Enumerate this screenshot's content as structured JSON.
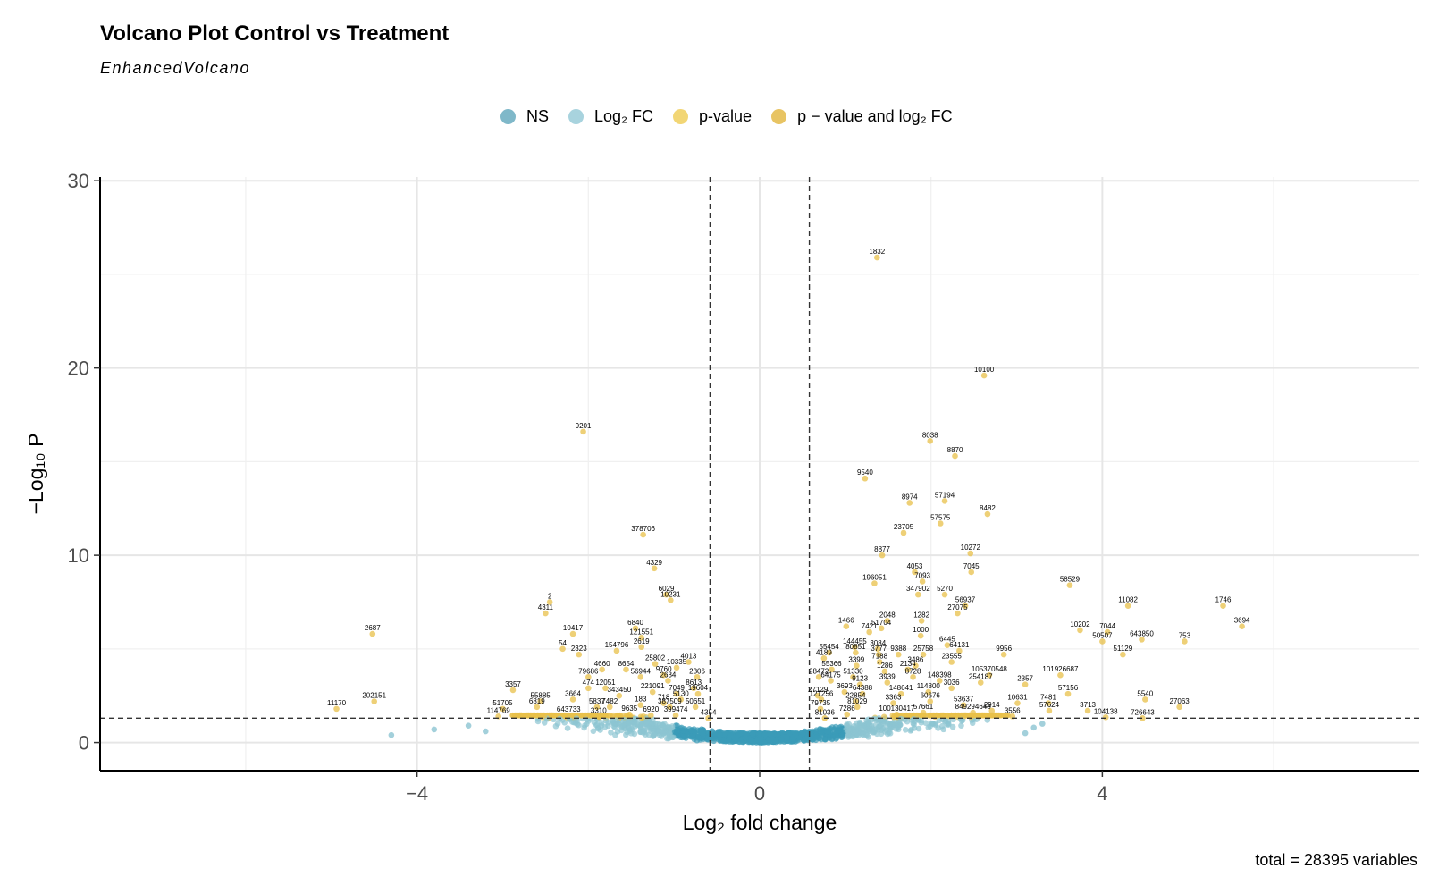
{
  "chart_data": {
    "type": "scatter",
    "title": "Volcano Plot Control vs Treatment",
    "subtitle": "EnhancedVolcano",
    "xlabel": "Log₂ fold change",
    "ylabel": "−Log₁₀ P",
    "xlim": [
      -7.7,
      7.7
    ],
    "ylim": [
      -1.5,
      30.2
    ],
    "xticks": [
      -4,
      0,
      4
    ],
    "yticks": [
      0,
      10,
      20,
      30
    ],
    "grid": true,
    "legend_position": "top",
    "fc_cutoff": 0.58,
    "p_cutoff_log10": 1.3,
    "caption": "total = 28395 variables",
    "legend": [
      {
        "name": "NS",
        "color": "#7fb8c9"
      },
      {
        "name": "Log₂ FC",
        "color": "#a8d3de"
      },
      {
        "name": "p-value",
        "color": "#f2d675"
      },
      {
        "name": "p − value and log₂ FC",
        "color": "#e8c463"
      }
    ],
    "colors": {
      "ns": "#3a9bb8",
      "ns_light": "#8cc4d2",
      "sig": "#e8c04a"
    },
    "labeled_points": [
      {
        "label": "1832",
        "x": 1.37,
        "y": 25.9
      },
      {
        "label": "10100",
        "x": 2.62,
        "y": 19.6
      },
      {
        "label": "9201",
        "x": -2.06,
        "y": 16.6
      },
      {
        "label": "8038",
        "x": 1.99,
        "y": 16.1
      },
      {
        "label": "8870",
        "x": 2.28,
        "y": 15.3
      },
      {
        "label": "9540",
        "x": 1.23,
        "y": 14.1
      },
      {
        "label": "8974",
        "x": 1.75,
        "y": 12.8
      },
      {
        "label": "57194",
        "x": 2.16,
        "y": 12.9
      },
      {
        "label": "8482",
        "x": 2.66,
        "y": 12.2
      },
      {
        "label": "57575",
        "x": 2.11,
        "y": 11.7
      },
      {
        "label": "23705",
        "x": 1.68,
        "y": 11.2
      },
      {
        "label": "378706",
        "x": -1.36,
        "y": 11.1
      },
      {
        "label": "10272",
        "x": 2.46,
        "y": 10.1
      },
      {
        "label": "8877",
        "x": 1.43,
        "y": 10.0
      },
      {
        "label": "4329",
        "x": -1.23,
        "y": 9.3
      },
      {
        "label": "4053",
        "x": 1.81,
        "y": 9.1
      },
      {
        "label": "7045",
        "x": 2.47,
        "y": 9.1
      },
      {
        "label": "196051",
        "x": 1.34,
        "y": 8.5
      },
      {
        "label": "7093",
        "x": 1.9,
        "y": 8.6
      },
      {
        "label": "58529",
        "x": 3.62,
        "y": 8.4
      },
      {
        "label": "6029",
        "x": -1.09,
        "y": 7.9
      },
      {
        "label": "347902",
        "x": 1.85,
        "y": 7.9
      },
      {
        "label": "5270",
        "x": 2.16,
        "y": 7.9
      },
      {
        "label": "10231",
        "x": -1.04,
        "y": 7.6
      },
      {
        "label": "2",
        "x": -2.45,
        "y": 7.5
      },
      {
        "label": "56937",
        "x": 2.4,
        "y": 7.3
      },
      {
        "label": "11082",
        "x": 4.3,
        "y": 7.3
      },
      {
        "label": "1746",
        "x": 5.41,
        "y": 7.3
      },
      {
        "label": "4311",
        "x": -2.5,
        "y": 6.9
      },
      {
        "label": "27075",
        "x": 2.31,
        "y": 6.9
      },
      {
        "label": "2048",
        "x": 1.49,
        "y": 6.5
      },
      {
        "label": "1282",
        "x": 1.89,
        "y": 6.5
      },
      {
        "label": "1466",
        "x": 1.01,
        "y": 6.2
      },
      {
        "label": "6840",
        "x": -1.45,
        "y": 6.1
      },
      {
        "label": "51704",
        "x": 1.42,
        "y": 6.1
      },
      {
        "label": "3694",
        "x": 5.63,
        "y": 6.2
      },
      {
        "label": "7421",
        "x": 1.28,
        "y": 5.9
      },
      {
        "label": "10202",
        "x": 3.74,
        "y": 6.0
      },
      {
        "label": "7044",
        "x": 4.06,
        "y": 5.9
      },
      {
        "label": "10417",
        "x": -2.18,
        "y": 5.8
      },
      {
        "label": "1000",
        "x": 1.88,
        "y": 5.7
      },
      {
        "label": "2687",
        "x": -4.52,
        "y": 5.8
      },
      {
        "label": "121551",
        "x": -1.38,
        "y": 5.6
      },
      {
        "label": "643850",
        "x": 4.46,
        "y": 5.5
      },
      {
        "label": "50507",
        "x": 4.0,
        "y": 5.4
      },
      {
        "label": "753",
        "x": 4.96,
        "y": 5.4
      },
      {
        "label": "6445",
        "x": 2.19,
        "y": 5.2
      },
      {
        "label": "144455",
        "x": 1.11,
        "y": 5.1
      },
      {
        "label": "3084",
        "x": 1.38,
        "y": 5.0
      },
      {
        "label": "2619",
        "x": -1.38,
        "y": 5.1
      },
      {
        "label": "54",
        "x": -2.3,
        "y": 5.0
      },
      {
        "label": "154796",
        "x": -1.67,
        "y": 4.9
      },
      {
        "label": "64131",
        "x": 2.33,
        "y": 4.9
      },
      {
        "label": "55454",
        "x": 0.81,
        "y": 4.8
      },
      {
        "label": "80851",
        "x": 1.12,
        "y": 4.8
      },
      {
        "label": "3777",
        "x": 1.39,
        "y": 4.7
      },
      {
        "label": "9388",
        "x": 1.62,
        "y": 4.7
      },
      {
        "label": "25758",
        "x": 1.91,
        "y": 4.7
      },
      {
        "label": "9956",
        "x": 2.85,
        "y": 4.7
      },
      {
        "label": "51129",
        "x": 4.24,
        "y": 4.7
      },
      {
        "label": "2323",
        "x": -2.11,
        "y": 4.7
      },
      {
        "label": "4189",
        "x": 0.75,
        "y": 4.5
      },
      {
        "label": "7188",
        "x": 1.4,
        "y": 4.3
      },
      {
        "label": "23555",
        "x": 2.24,
        "y": 4.3
      },
      {
        "label": "25802",
        "x": -1.22,
        "y": 4.2
      },
      {
        "label": "4013",
        "x": -0.83,
        "y": 4.3
      },
      {
        "label": "3399",
        "x": 1.13,
        "y": 4.1
      },
      {
        "label": "3486",
        "x": 1.82,
        "y": 4.1
      },
      {
        "label": "55366",
        "x": 0.84,
        "y": 3.9
      },
      {
        "label": "10335",
        "x": -0.97,
        "y": 4.0
      },
      {
        "label": "4660",
        "x": -1.84,
        "y": 3.9
      },
      {
        "label": "8654",
        "x": -1.56,
        "y": 3.9
      },
      {
        "label": "2134",
        "x": 1.73,
        "y": 3.9
      },
      {
        "label": "1286",
        "x": 1.46,
        "y": 3.8
      },
      {
        "label": "105370548",
        "x": 2.68,
        "y": 3.6
      },
      {
        "label": "101926687",
        "x": 3.51,
        "y": 3.6
      },
      {
        "label": "8728",
        "x": 1.79,
        "y": 3.5
      },
      {
        "label": "2306",
        "x": -0.73,
        "y": 3.5
      },
      {
        "label": "56944",
        "x": -1.39,
        "y": 3.5
      },
      {
        "label": "9760",
        "x": -1.12,
        "y": 3.6
      },
      {
        "label": "28472",
        "x": 0.69,
        "y": 3.5
      },
      {
        "label": "79686",
        "x": -2.0,
        "y": 3.5
      },
      {
        "label": "51330",
        "x": 1.09,
        "y": 3.5
      },
      {
        "label": "148398",
        "x": 2.1,
        "y": 3.3
      },
      {
        "label": "254187",
        "x": 2.58,
        "y": 3.2
      },
      {
        "label": "2634",
        "x": -1.07,
        "y": 3.3
      },
      {
        "label": "64175",
        "x": 0.83,
        "y": 3.3
      },
      {
        "label": "3939",
        "x": 1.49,
        "y": 3.2
      },
      {
        "label": "2357",
        "x": 3.1,
        "y": 3.1
      },
      {
        "label": "9123",
        "x": 1.17,
        "y": 3.1
      },
      {
        "label": "474",
        "x": -2.0,
        "y": 2.9
      },
      {
        "label": "12051",
        "x": -1.8,
        "y": 2.9
      },
      {
        "label": "8613",
        "x": -0.77,
        "y": 2.9
      },
      {
        "label": "3036",
        "x": 2.24,
        "y": 2.9
      },
      {
        "label": "3357",
        "x": -2.88,
        "y": 2.8
      },
      {
        "label": "3693",
        "x": 0.99,
        "y": 2.7
      },
      {
        "label": "64388",
        "x": 1.2,
        "y": 2.6
      },
      {
        "label": "221091",
        "x": -1.25,
        "y": 2.7
      },
      {
        "label": "7049",
        "x": -0.97,
        "y": 2.6
      },
      {
        "label": "19604",
        "x": -0.72,
        "y": 2.6
      },
      {
        "label": "148641",
        "x": 1.65,
        "y": 2.6
      },
      {
        "label": "114800",
        "x": 1.97,
        "y": 2.7
      },
      {
        "label": "57156",
        "x": 3.6,
        "y": 2.6
      },
      {
        "label": "343450",
        "x": -1.64,
        "y": 2.5
      },
      {
        "label": "27129",
        "x": 0.68,
        "y": 2.5
      },
      {
        "label": "3664",
        "x": -2.18,
        "y": 2.3
      },
      {
        "label": "5130",
        "x": -0.92,
        "y": 2.3
      },
      {
        "label": "121256",
        "x": 0.72,
        "y": 2.3
      },
      {
        "label": "55885",
        "x": -2.56,
        "y": 2.2
      },
      {
        "label": "5540",
        "x": 4.5,
        "y": 2.3
      },
      {
        "label": "22854",
        "x": 1.12,
        "y": 2.2
      },
      {
        "label": "3363",
        "x": 1.56,
        "y": 2.1
      },
      {
        "label": "60676",
        "x": 1.99,
        "y": 2.2
      },
      {
        "label": "202151",
        "x": -4.5,
        "y": 2.2
      },
      {
        "label": "10631",
        "x": 3.01,
        "y": 2.1
      },
      {
        "label": "7481",
        "x": 3.37,
        "y": 2.1
      },
      {
        "label": "718",
        "x": -1.12,
        "y": 2.1
      },
      {
        "label": "27063",
        "x": 4.9,
        "y": 1.9
      },
      {
        "label": "183",
        "x": -1.39,
        "y": 2.0
      },
      {
        "label": "5837",
        "x": -1.9,
        "y": 1.9
      },
      {
        "label": "7482",
        "x": -1.75,
        "y": 1.9
      },
      {
        "label": "53637",
        "x": 2.38,
        "y": 2.0
      },
      {
        "label": "387509",
        "x": -1.05,
        "y": 1.9
      },
      {
        "label": "50651",
        "x": -0.75,
        "y": 1.9
      },
      {
        "label": "6819",
        "x": -2.6,
        "y": 1.9
      },
      {
        "label": "51705",
        "x": -3.0,
        "y": 1.8
      },
      {
        "label": "79735",
        "x": 0.71,
        "y": 1.8
      },
      {
        "label": "81029",
        "x": 1.14,
        "y": 1.9
      },
      {
        "label": "11170",
        "x": -4.94,
        "y": 1.8
      },
      {
        "label": "2914",
        "x": 2.71,
        "y": 1.7
      },
      {
        "label": "57624",
        "x": 3.38,
        "y": 1.7
      },
      {
        "label": "3713",
        "x": 3.83,
        "y": 1.7
      },
      {
        "label": "57661",
        "x": 1.91,
        "y": 1.6
      },
      {
        "label": "849294648",
        "x": 2.49,
        "y": 1.6
      },
      {
        "label": "100130417",
        "x": 1.6,
        "y": 1.5
      },
      {
        "label": "7286",
        "x": 1.02,
        "y": 1.5
      },
      {
        "label": "3310",
        "x": -1.88,
        "y": 1.4
      },
      {
        "label": "643733",
        "x": -2.23,
        "y": 1.45
      },
      {
        "label": "9635",
        "x": -1.52,
        "y": 1.5
      },
      {
        "label": "6920",
        "x": -1.27,
        "y": 1.45
      },
      {
        "label": "399474",
        "x": -0.98,
        "y": 1.45
      },
      {
        "label": "114769",
        "x": -3.05,
        "y": 1.4
      },
      {
        "label": "3556",
        "x": 2.95,
        "y": 1.4
      },
      {
        "label": "104138",
        "x": 4.04,
        "y": 1.35
      },
      {
        "label": "726643",
        "x": 4.47,
        "y": 1.3
      },
      {
        "label": "4354",
        "x": -0.6,
        "y": 1.3
      },
      {
        "label": "81036",
        "x": 0.76,
        "y": 1.3
      }
    ]
  }
}
